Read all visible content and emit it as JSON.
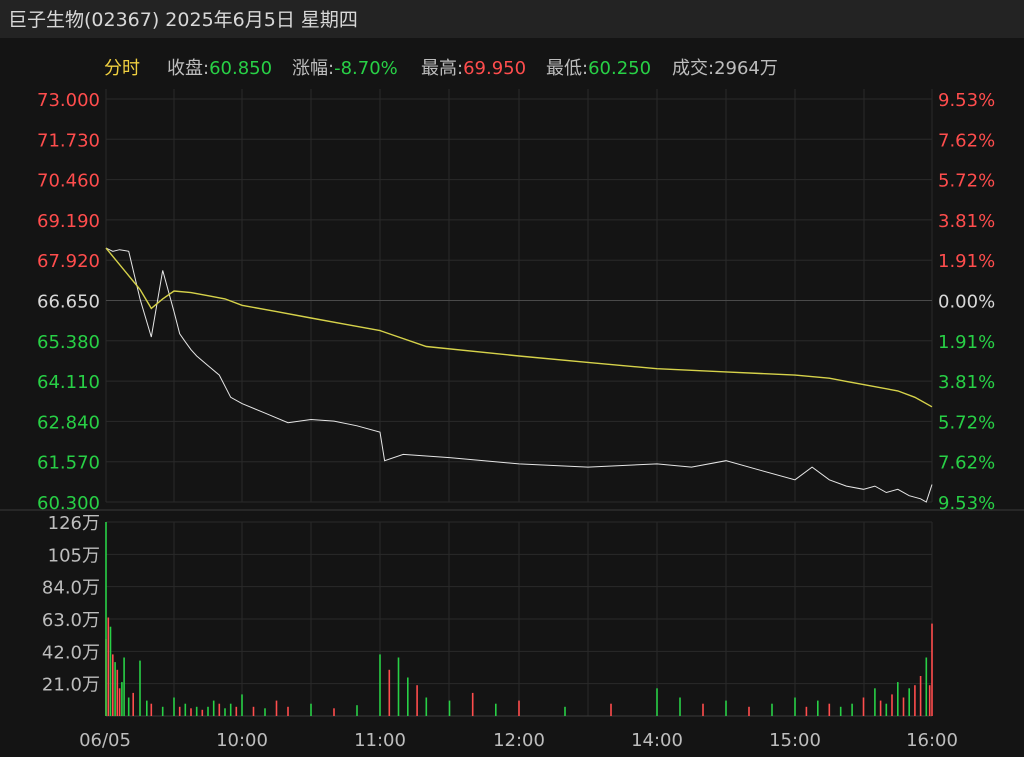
{
  "header": {
    "title": "巨子生物(02367) 2025年6月5日 星期四",
    "mode_label": "分时",
    "stats": [
      {
        "label": "收盘:",
        "value": "60.850",
        "color": "down"
      },
      {
        "label": "涨幅:",
        "value": "-8.70%",
        "color": "down"
      },
      {
        "label": "最高:",
        "value": "69.950",
        "color": "up"
      },
      {
        "label": "最低:",
        "value": "60.250",
        "color": "down"
      },
      {
        "label": "成交:",
        "value": "2964万",
        "color": "lbl"
      }
    ]
  },
  "colors": {
    "up": "#ff4d4d",
    "down": "#28d046",
    "price_line": "#e6e6e6",
    "avg_line": "#d6d24a",
    "grid": "#2a2a2a",
    "background": "#141414"
  },
  "chart_data": [
    {
      "type": "line",
      "prev_close": 66.65,
      "ylim": [
        60.3,
        73.0
      ],
      "y_ticks_left": [
        "73.000",
        "71.730",
        "70.460",
        "69.190",
        "67.920",
        "66.650",
        "65.380",
        "64.110",
        "62.840",
        "61.570",
        "60.300"
      ],
      "y_ticks_right": [
        "9.53%",
        "7.62%",
        "5.72%",
        "3.81%",
        "1.91%",
        "0.00%",
        "1.91%",
        "3.81%",
        "5.72%",
        "7.62%",
        "9.53%"
      ],
      "x_labels": [
        "06/05",
        "10:00",
        "11:00",
        "12:00",
        "14:00",
        "15:00",
        "16:00"
      ],
      "series": [
        {
          "role": "price",
          "x": [
            "09:30",
            "09:33",
            "09:36",
            "09:40",
            "09:45",
            "09:50",
            "09:55",
            "10:00",
            "10:05",
            "10:10",
            "10:15",
            "10:20",
            "10:30",
            "10:40",
            "10:50",
            "11:00",
            "11:10",
            "11:20",
            "11:30",
            "11:40",
            "11:50",
            "12:00",
            "12:01",
            "12:05",
            "12:15",
            "12:30",
            "12:45",
            "13:00",
            "13:15",
            "13:30",
            "13:45",
            "14:00",
            "14:15",
            "14:30",
            "14:45",
            "15:00",
            "15:10",
            "15:20",
            "15:30",
            "15:40",
            "15:50",
            "15:55",
            "16:00"
          ],
          "y": [
            68.3,
            68.2,
            68.25,
            68.2,
            66.7,
            65.5,
            67.6,
            66.3,
            65.6,
            65.35,
            65.1,
            64.9,
            64.6,
            64.3,
            63.6,
            63.4,
            63.1,
            62.8,
            62.9,
            62.85,
            62.7,
            62.5,
            61.6,
            61.8,
            61.7,
            61.5,
            61.4,
            61.5,
            61.4,
            61.6,
            61.3,
            61.0,
            61.4,
            61.0,
            60.8,
            60.7,
            60.8,
            60.6,
            60.7,
            60.5,
            60.4,
            60.3,
            60.85
          ]
        },
        {
          "role": "average",
          "x": [
            "09:30",
            "09:45",
            "09:50",
            "09:55",
            "10:00",
            "10:15",
            "10:30",
            "10:45",
            "11:00",
            "11:15",
            "11:30",
            "11:45",
            "12:00",
            "12:10",
            "12:30",
            "12:45",
            "13:00",
            "13:30",
            "14:00",
            "14:30",
            "14:45",
            "15:00",
            "15:30",
            "15:45",
            "16:00"
          ],
          "y": [
            68.3,
            67.0,
            66.4,
            66.7,
            66.95,
            66.9,
            66.8,
            66.7,
            66.5,
            66.3,
            66.1,
            65.9,
            65.7,
            65.2,
            64.9,
            64.7,
            64.5,
            64.4,
            64.3,
            64.2,
            64.1,
            64.0,
            63.8,
            63.6,
            63.3
          ]
        }
      ]
    },
    {
      "type": "bar",
      "title": "volume",
      "ylim": [
        0,
        126
      ],
      "y_ticks": [
        "126万",
        "105万",
        "84.0万",
        "63.0万",
        "42.0万",
        "21.0万"
      ],
      "x": [
        "09:19",
        "09:30",
        "09:31",
        "09:32",
        "09:33",
        "09:34",
        "09:35",
        "09:36",
        "09:37",
        "09:38",
        "09:40",
        "09:42",
        "09:45",
        "09:48",
        "09:50",
        "09:55",
        "10:00",
        "10:05",
        "10:10",
        "10:15",
        "10:20",
        "10:25",
        "10:30",
        "10:35",
        "10:40",
        "10:45",
        "10:50",
        "10:55",
        "11:00",
        "11:05",
        "11:10",
        "11:15",
        "11:20",
        "11:30",
        "11:40",
        "11:50",
        "12:00",
        "12:02",
        "12:04",
        "12:06",
        "12:08",
        "12:10",
        "12:15",
        "12:20",
        "12:25",
        "12:30",
        "12:40",
        "12:50",
        "13:00",
        "13:10",
        "13:20",
        "13:30",
        "13:40",
        "13:50",
        "14:00",
        "14:10",
        "14:20",
        "14:30",
        "14:40",
        "14:50",
        "15:00",
        "15:10",
        "15:15",
        "15:20",
        "15:25",
        "15:30",
        "15:35",
        "15:40",
        "15:45",
        "15:50",
        "15:55",
        "15:58",
        "16:00"
      ],
      "values": [
        50,
        126,
        64,
        58,
        40,
        35,
        30,
        18,
        22,
        38,
        12,
        15,
        36,
        10,
        8,
        6,
        12,
        6,
        8,
        5,
        6,
        4,
        6,
        10,
        8,
        5,
        8,
        6,
        14,
        6,
        5,
        10,
        6,
        8,
        5,
        7,
        40,
        30,
        38,
        25,
        20,
        12,
        10,
        15,
        8,
        10,
        6,
        8,
        18,
        12,
        8,
        10,
        6,
        8,
        12,
        6,
        10,
        8,
        6,
        8,
        12,
        18,
        10,
        8,
        14,
        22,
        12,
        18,
        20,
        26,
        38,
        20,
        60
      ],
      "direction": [
        "up",
        "down",
        "up",
        "down",
        "up",
        "down",
        "up",
        "up",
        "down",
        "down",
        "down",
        "up",
        "down",
        "down",
        "up",
        "down",
        "down",
        "up",
        "down",
        "up",
        "down",
        "up",
        "down",
        "down",
        "up",
        "down",
        "down",
        "up",
        "down",
        "up",
        "down",
        "up",
        "up",
        "down",
        "up",
        "down",
        "down",
        "up",
        "down",
        "down",
        "up",
        "down",
        "down",
        "up",
        "down",
        "up",
        "down",
        "up",
        "down",
        "down",
        "up",
        "down",
        "up",
        "down",
        "down",
        "up",
        "down",
        "up",
        "down",
        "down",
        "up",
        "down",
        "up",
        "down",
        "up",
        "down",
        "up",
        "down",
        "up",
        "up",
        "down",
        "up",
        "up"
      ]
    }
  ]
}
